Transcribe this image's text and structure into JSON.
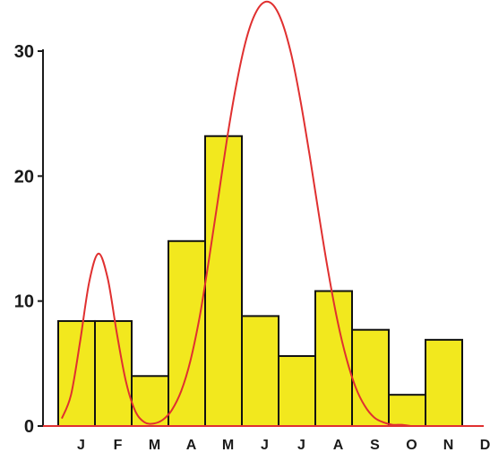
{
  "chart_data": {
    "type": "bar",
    "title": "",
    "xlabel": "",
    "ylabel": "",
    "categories": [
      "J",
      "F",
      "M",
      "A",
      "M",
      "J",
      "J",
      "A",
      "S",
      "O",
      "N",
      "D"
    ],
    "series": [
      {
        "values": [
          8.4,
          8.4,
          4.0,
          14.8,
          23.2,
          8.8,
          5.6,
          10.8,
          7.7,
          2.5,
          6.9,
          0
        ]
      }
    ],
    "fitted_curve": {
      "type": "line",
      "x": [
        0.0,
        0.25,
        0.5,
        0.75,
        1.0,
        1.25,
        1.5,
        1.75,
        2.0,
        2.25,
        2.5,
        2.75,
        3.0,
        3.25,
        3.5,
        3.75,
        4.0,
        4.25,
        4.5,
        4.75,
        5.0,
        5.25,
        5.5,
        5.75,
        6.0,
        6.25,
        6.5,
        6.75,
        7.0,
        7.25,
        7.5,
        7.75,
        8.0,
        8.25,
        8.5,
        8.75,
        9.0,
        9.25,
        9.5
      ],
      "y": [
        0.6,
        2.5,
        6.8,
        11.6,
        13.8,
        11.8,
        7.4,
        3.5,
        1.2,
        0.3,
        0.2,
        0.5,
        1.3,
        2.8,
        5.2,
        8.7,
        13.2,
        18.1,
        23.0,
        27.3,
        30.7,
        32.9,
        33.9,
        33.7,
        32.3,
        29.7,
        26.0,
        21.6,
        16.9,
        12.4,
        8.5,
        5.4,
        3.1,
        1.6,
        0.7,
        0.3,
        0.1,
        0.1,
        0.0
      ]
    },
    "yticks": [
      0,
      10,
      20,
      30
    ],
    "ylim": [
      0,
      34
    ],
    "grid": false,
    "legend": "none"
  },
  "colors": {
    "bar_fill": "#f2e81e",
    "bar_stroke": "#111111",
    "curve": "#e03030",
    "axis": "#1a1a1a",
    "baseline": "#e03030"
  }
}
